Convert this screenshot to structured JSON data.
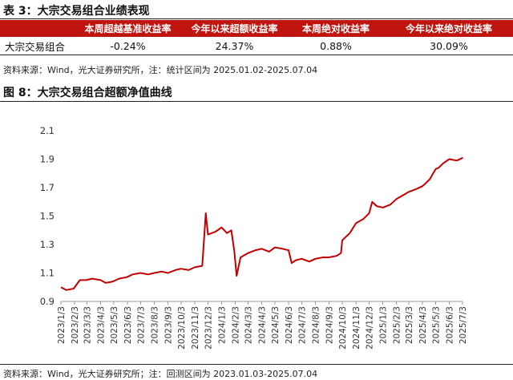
{
  "table_section": {
    "title": "表 3：大宗交易组合业绩表现",
    "headers": [
      "",
      "本周超越基准收益率",
      "今年以来超额收益率",
      "本周绝对收益率",
      "今年以来绝对收益率"
    ],
    "row": [
      "大宗交易组合",
      "-0.24%",
      "24.37%",
      "0.88%",
      "30.09%"
    ],
    "source_note": "资料来源：Wind，光大证券研究所，注：统计区间为 2025.01.02-2025.07.04"
  },
  "chart_section": {
    "title": "图 8：大宗交易组合超额净值曲线",
    "source_note": "资料来源：Wind，光大证券研究所；注：回测区间为 2023.01.03-2025.07.04"
  },
  "colors": {
    "accent_red": "#c0150f",
    "line_red": "#c00000",
    "header_text": "#ffffff"
  },
  "chart_data": {
    "type": "line",
    "title": "",
    "xlabel": "",
    "ylabel": "",
    "ylim": [
      0.9,
      2.1
    ],
    "yticks": [
      "0.9",
      "1.1",
      "1.3",
      "1.5",
      "1.7",
      "1.9",
      "2.1"
    ],
    "xticks": [
      "2023/1/3",
      "2023/2/3",
      "2023/3/3",
      "2023/4/3",
      "2023/5/3",
      "2023/6/3",
      "2023/7/3",
      "2023/8/3",
      "2023/9/3",
      "2023/10/3",
      "2023/11/3",
      "2023/12/3",
      "2024/1/3",
      "2024/2/3",
      "2024/3/3",
      "2024/4/3",
      "2024/5/3",
      "2024/6/3",
      "2024/7/3",
      "2024/8/3",
      "2024/9/3",
      "2024/10/3",
      "2024/11/3",
      "2024/12/3",
      "2025/1/3",
      "2025/2/3",
      "2025/3/3",
      "2025/4/3",
      "2025/5/3",
      "2025/6/3",
      "2025/7/3"
    ],
    "grid": false,
    "legend": "none",
    "series": [
      {
        "name": "",
        "x": [
          "2023/1/3",
          "2023/1/15",
          "2023/2/1",
          "2023/2/15",
          "2023/3/1",
          "2023/3/15",
          "2023/4/3",
          "2023/4/15",
          "2023/5/1",
          "2023/5/15",
          "2023/6/1",
          "2023/6/15",
          "2023/7/3",
          "2023/7/20",
          "2023/8/3",
          "2023/8/20",
          "2023/9/3",
          "2023/9/20",
          "2023/10/3",
          "2023/10/20",
          "2023/11/3",
          "2023/11/20",
          "2023/11/25",
          "2023/11/28",
          "2023/12/3",
          "2023/12/20",
          "2024/1/3",
          "2024/1/15",
          "2024/1/25",
          "2024/2/1",
          "2024/2/6",
          "2024/2/15",
          "2024/3/3",
          "2024/3/20",
          "2024/4/3",
          "2024/4/20",
          "2024/5/3",
          "2024/5/20",
          "2024/6/3",
          "2024/6/10",
          "2024/6/20",
          "2024/7/3",
          "2024/7/20",
          "2024/8/3",
          "2024/8/20",
          "2024/9/3",
          "2024/9/20",
          "2024/9/30",
          "2024/10/3",
          "2024/10/20",
          "2024/11/3",
          "2024/11/20",
          "2024/12/3",
          "2024/12/10",
          "2024/12/20",
          "2025/1/3",
          "2025/1/20",
          "2025/2/3",
          "2025/2/20",
          "2025/3/3",
          "2025/3/20",
          "2025/4/3",
          "2025/4/10",
          "2025/4/20",
          "2025/5/3",
          "2025/5/10",
          "2025/5/20",
          "2025/6/3",
          "2025/6/20",
          "2025/7/4"
        ],
        "y": [
          1.0,
          0.98,
          0.99,
          1.05,
          1.05,
          1.06,
          1.05,
          1.03,
          1.04,
          1.06,
          1.07,
          1.09,
          1.1,
          1.09,
          1.1,
          1.11,
          1.1,
          1.12,
          1.13,
          1.12,
          1.14,
          1.15,
          1.38,
          1.52,
          1.37,
          1.39,
          1.42,
          1.38,
          1.4,
          1.25,
          1.08,
          1.21,
          1.24,
          1.26,
          1.27,
          1.25,
          1.28,
          1.27,
          1.26,
          1.17,
          1.19,
          1.2,
          1.18,
          1.2,
          1.21,
          1.21,
          1.22,
          1.24,
          1.33,
          1.38,
          1.45,
          1.48,
          1.52,
          1.6,
          1.57,
          1.56,
          1.58,
          1.62,
          1.65,
          1.67,
          1.69,
          1.71,
          1.73,
          1.76,
          1.83,
          1.84,
          1.87,
          1.9,
          1.89,
          1.91
        ]
      }
    ]
  }
}
